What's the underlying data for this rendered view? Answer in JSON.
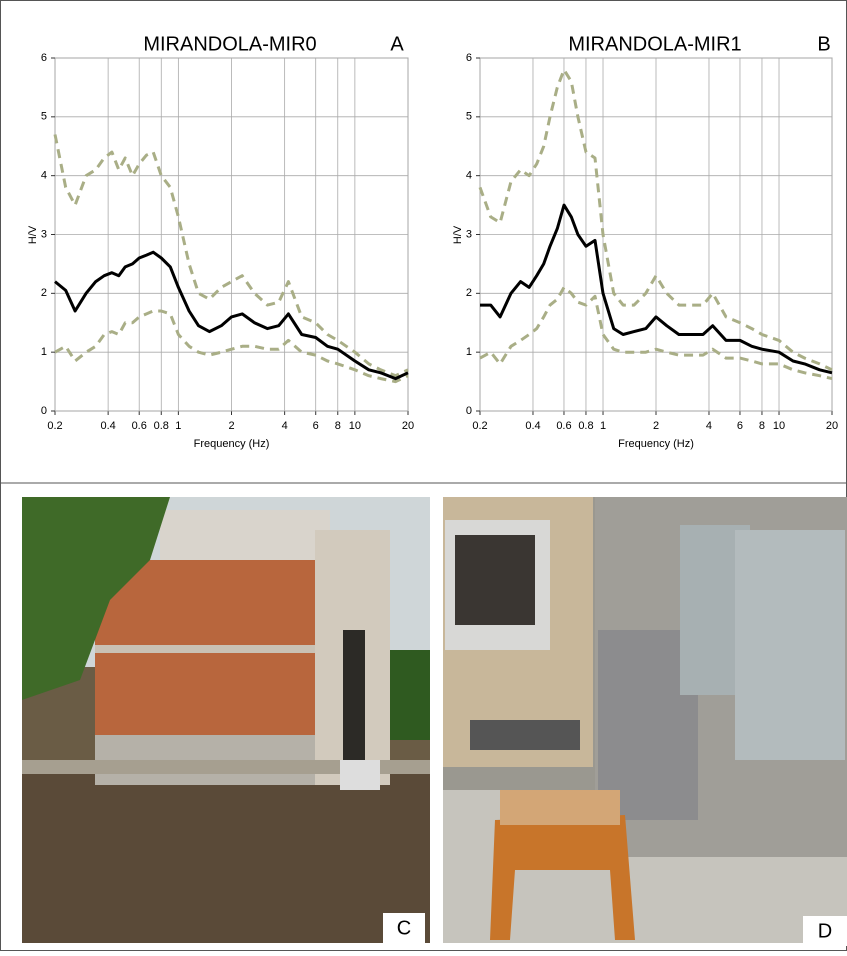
{
  "chart_data": [
    {
      "type": "line",
      "title": "MIRANDOLA-MIR0",
      "annotation": "A",
      "x_label": "Frequency (Hz)",
      "y_label": "H/V",
      "xlim": [
        0.2,
        20
      ],
      "ylim": [
        0,
        6
      ],
      "x_log": true,
      "grid": true,
      "xticks": [
        0.2,
        0.4,
        0.6,
        0.8,
        1,
        2,
        4,
        6,
        8,
        10,
        20
      ],
      "yticks": [
        0,
        1,
        2,
        3,
        4,
        5,
        6
      ],
      "x": [
        0.2,
        0.23,
        0.26,
        0.3,
        0.34,
        0.38,
        0.42,
        0.46,
        0.5,
        0.55,
        0.6,
        0.66,
        0.72,
        0.8,
        0.9,
        1,
        1.15,
        1.3,
        1.5,
        1.75,
        2,
        2.3,
        2.7,
        3.2,
        3.7,
        4.2,
        5,
        6,
        7,
        8,
        10,
        12,
        14,
        17,
        20
      ],
      "series": [
        {
          "color": "#a9ae86",
          "dashed": true,
          "values": [
            4.7,
            3.8,
            3.5,
            4.0,
            4.1,
            4.3,
            4.4,
            4.1,
            4.3,
            4.0,
            4.2,
            4.35,
            4.4,
            4.0,
            3.8,
            3.3,
            2.5,
            2.0,
            1.9,
            2.1,
            2.2,
            2.3,
            2.0,
            1.8,
            1.85,
            2.2,
            1.6,
            1.5,
            1.3,
            1.2,
            1.0,
            0.8,
            0.7,
            0.6,
            0.7
          ]
        },
        {
          "color": "#a9ae86",
          "dashed": true,
          "values": [
            1.0,
            1.1,
            0.85,
            1.0,
            1.1,
            1.3,
            1.35,
            1.3,
            1.5,
            1.5,
            1.6,
            1.65,
            1.7,
            1.7,
            1.65,
            1.3,
            1.1,
            1.0,
            0.95,
            1.0,
            1.05,
            1.1,
            1.1,
            1.05,
            1.05,
            1.2,
            1.0,
            0.95,
            0.85,
            0.8,
            0.7,
            0.6,
            0.55,
            0.5,
            0.6
          ]
        },
        {
          "color": "#000000",
          "dashed": false,
          "values": [
            2.2,
            2.05,
            1.7,
            2.0,
            2.2,
            2.3,
            2.35,
            2.3,
            2.45,
            2.5,
            2.6,
            2.65,
            2.7,
            2.6,
            2.45,
            2.1,
            1.7,
            1.45,
            1.35,
            1.45,
            1.6,
            1.65,
            1.5,
            1.4,
            1.45,
            1.65,
            1.3,
            1.25,
            1.1,
            1.05,
            0.85,
            0.7,
            0.65,
            0.55,
            0.65
          ]
        }
      ]
    },
    {
      "type": "line",
      "title": "MIRANDOLA-MIR1",
      "annotation": "B",
      "x_label": "Frequency (Hz)",
      "y_label": "H/V",
      "xlim": [
        0.2,
        20
      ],
      "ylim": [
        0,
        6
      ],
      "x_log": true,
      "grid": true,
      "xticks": [
        0.2,
        0.4,
        0.6,
        0.8,
        1,
        2,
        4,
        6,
        8,
        10,
        20
      ],
      "yticks": [
        0,
        1,
        2,
        3,
        4,
        5,
        6
      ],
      "x": [
        0.2,
        0.23,
        0.26,
        0.3,
        0.34,
        0.38,
        0.42,
        0.46,
        0.5,
        0.55,
        0.6,
        0.66,
        0.72,
        0.8,
        0.9,
        1,
        1.15,
        1.3,
        1.5,
        1.75,
        2,
        2.3,
        2.7,
        3.2,
        3.7,
        4.2,
        5,
        6,
        7,
        8,
        10,
        12,
        14,
        17,
        20
      ],
      "series": [
        {
          "color": "#a9ae86",
          "dashed": true,
          "values": [
            3.8,
            3.3,
            3.2,
            3.9,
            4.1,
            4.0,
            4.2,
            4.5,
            5.0,
            5.5,
            5.8,
            5.6,
            5.0,
            4.4,
            4.3,
            3.0,
            2.0,
            1.8,
            1.8,
            2.0,
            2.3,
            2.0,
            1.8,
            1.8,
            1.8,
            2.0,
            1.6,
            1.5,
            1.4,
            1.3,
            1.2,
            1.0,
            0.9,
            0.8,
            0.7
          ]
        },
        {
          "color": "#a9ae86",
          "dashed": true,
          "values": [
            0.9,
            1.0,
            0.8,
            1.1,
            1.2,
            1.3,
            1.4,
            1.6,
            1.8,
            1.9,
            2.1,
            2.0,
            1.85,
            1.8,
            1.95,
            1.3,
            1.05,
            1.0,
            1.0,
            1.0,
            1.05,
            1.0,
            0.95,
            0.95,
            0.95,
            1.05,
            0.9,
            0.9,
            0.85,
            0.8,
            0.8,
            0.7,
            0.65,
            0.6,
            0.55
          ]
        },
        {
          "color": "#000000",
          "dashed": false,
          "values": [
            1.8,
            1.8,
            1.6,
            2.0,
            2.2,
            2.1,
            2.3,
            2.5,
            2.8,
            3.1,
            3.5,
            3.3,
            3.0,
            2.8,
            2.9,
            2.0,
            1.4,
            1.3,
            1.35,
            1.4,
            1.6,
            1.45,
            1.3,
            1.3,
            1.3,
            1.45,
            1.2,
            1.2,
            1.1,
            1.05,
            1.0,
            0.85,
            0.8,
            0.7,
            0.65
          ]
        }
      ]
    }
  ],
  "photos": [
    {
      "label": "C"
    },
    {
      "label": "D"
    }
  ]
}
